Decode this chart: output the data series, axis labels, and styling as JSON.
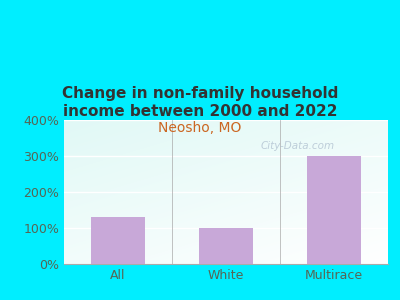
{
  "title": "Change in non-family household\nincome between 2000 and 2022",
  "subtitle": "Neosho, MO",
  "categories": [
    "All",
    "White",
    "Multirace"
  ],
  "values": [
    130,
    100,
    300
  ],
  "bar_color": "#c8a8d8",
  "background_outer": "#00eeff",
  "background_inner_topleft": "#d0ecc8",
  "background_inner_bottomright": "#f8fef8",
  "title_color": "#333333",
  "subtitle_color": "#cc6622",
  "tick_color": "#556655",
  "ylim": [
    0,
    400
  ],
  "yticks": [
    0,
    100,
    200,
    300,
    400
  ],
  "watermark": "City-Data.com",
  "title_fontsize": 11,
  "subtitle_fontsize": 10
}
